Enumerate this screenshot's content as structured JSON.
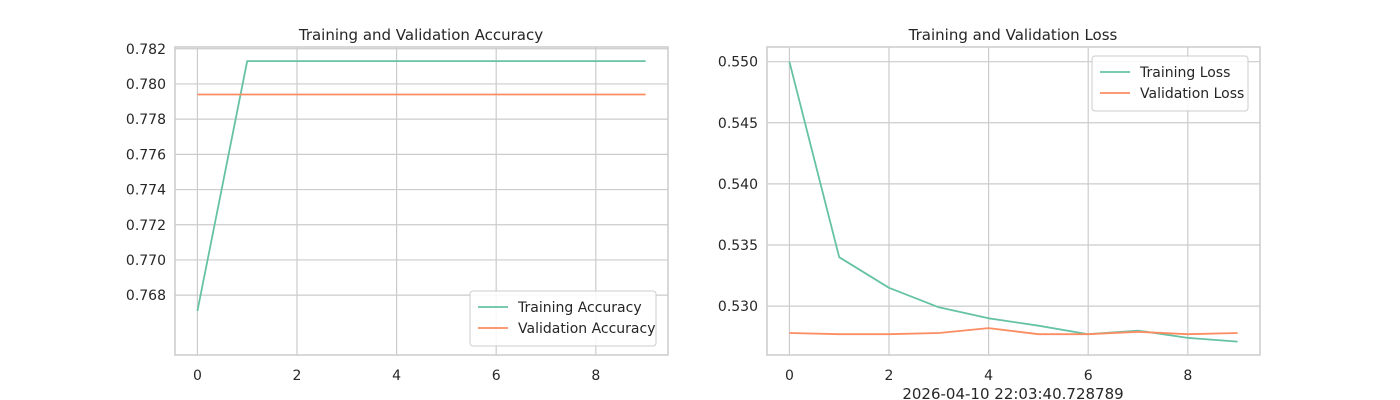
{
  "colors": {
    "series_a": "#66c2a5",
    "series_b": "#fc8d62",
    "grid": "#cccccc",
    "frame": "#cccccc",
    "text": "#262626"
  },
  "chart_data": [
    {
      "type": "line",
      "title": "Training and Validation Accuracy",
      "xlabel": "",
      "ylabel": "",
      "xlim": [
        -0.45,
        9.45
      ],
      "ylim": [
        0.7646,
        0.7821
      ],
      "xticks": [
        0,
        2,
        4,
        6,
        8
      ],
      "yticks": [
        0.768,
        0.77,
        0.772,
        0.774,
        0.776,
        0.778,
        0.78,
        0.782
      ],
      "ytick_labels": [
        "0.768",
        "0.770",
        "0.772",
        "0.774",
        "0.776",
        "0.778",
        "0.780",
        "0.782"
      ],
      "grid": true,
      "legend_position": "lower-right",
      "x": [
        0,
        1,
        2,
        3,
        4,
        5,
        6,
        7,
        8,
        9
      ],
      "series": [
        {
          "name": "Training Accuracy",
          "color_key": "series_a",
          "values": [
            0.7671,
            0.7813,
            0.7813,
            0.7813,
            0.7813,
            0.7813,
            0.7813,
            0.7813,
            0.7813,
            0.7813
          ]
        },
        {
          "name": "Validation Accuracy",
          "color_key": "series_b",
          "values": [
            0.7794,
            0.7794,
            0.7794,
            0.7794,
            0.7794,
            0.7794,
            0.7794,
            0.7794,
            0.7794,
            0.7794
          ]
        }
      ]
    },
    {
      "type": "line",
      "title": "Training and Validation Loss",
      "xlabel": "2026-04-10 22:03:40.728789",
      "ylabel": "",
      "xlim": [
        -0.45,
        9.45
      ],
      "ylim": [
        0.526,
        0.5512
      ],
      "xticks": [
        0,
        2,
        4,
        6,
        8
      ],
      "yticks": [
        0.53,
        0.535,
        0.54,
        0.545,
        0.55
      ],
      "ytick_labels": [
        "0.530",
        "0.535",
        "0.540",
        "0.545",
        "0.550"
      ],
      "grid": true,
      "legend_position": "upper-right",
      "x": [
        0,
        1,
        2,
        3,
        4,
        5,
        6,
        7,
        8,
        9
      ],
      "series": [
        {
          "name": "Training Loss",
          "color_key": "series_a",
          "values": [
            0.55,
            0.534,
            0.5315,
            0.5299,
            0.529,
            0.5284,
            0.5277,
            0.528,
            0.5274,
            0.5271
          ]
        },
        {
          "name": "Validation Loss",
          "color_key": "series_b",
          "values": [
            0.5278,
            0.5277,
            0.5277,
            0.5278,
            0.5282,
            0.5277,
            0.5277,
            0.5279,
            0.5277,
            0.5278
          ]
        }
      ]
    }
  ]
}
